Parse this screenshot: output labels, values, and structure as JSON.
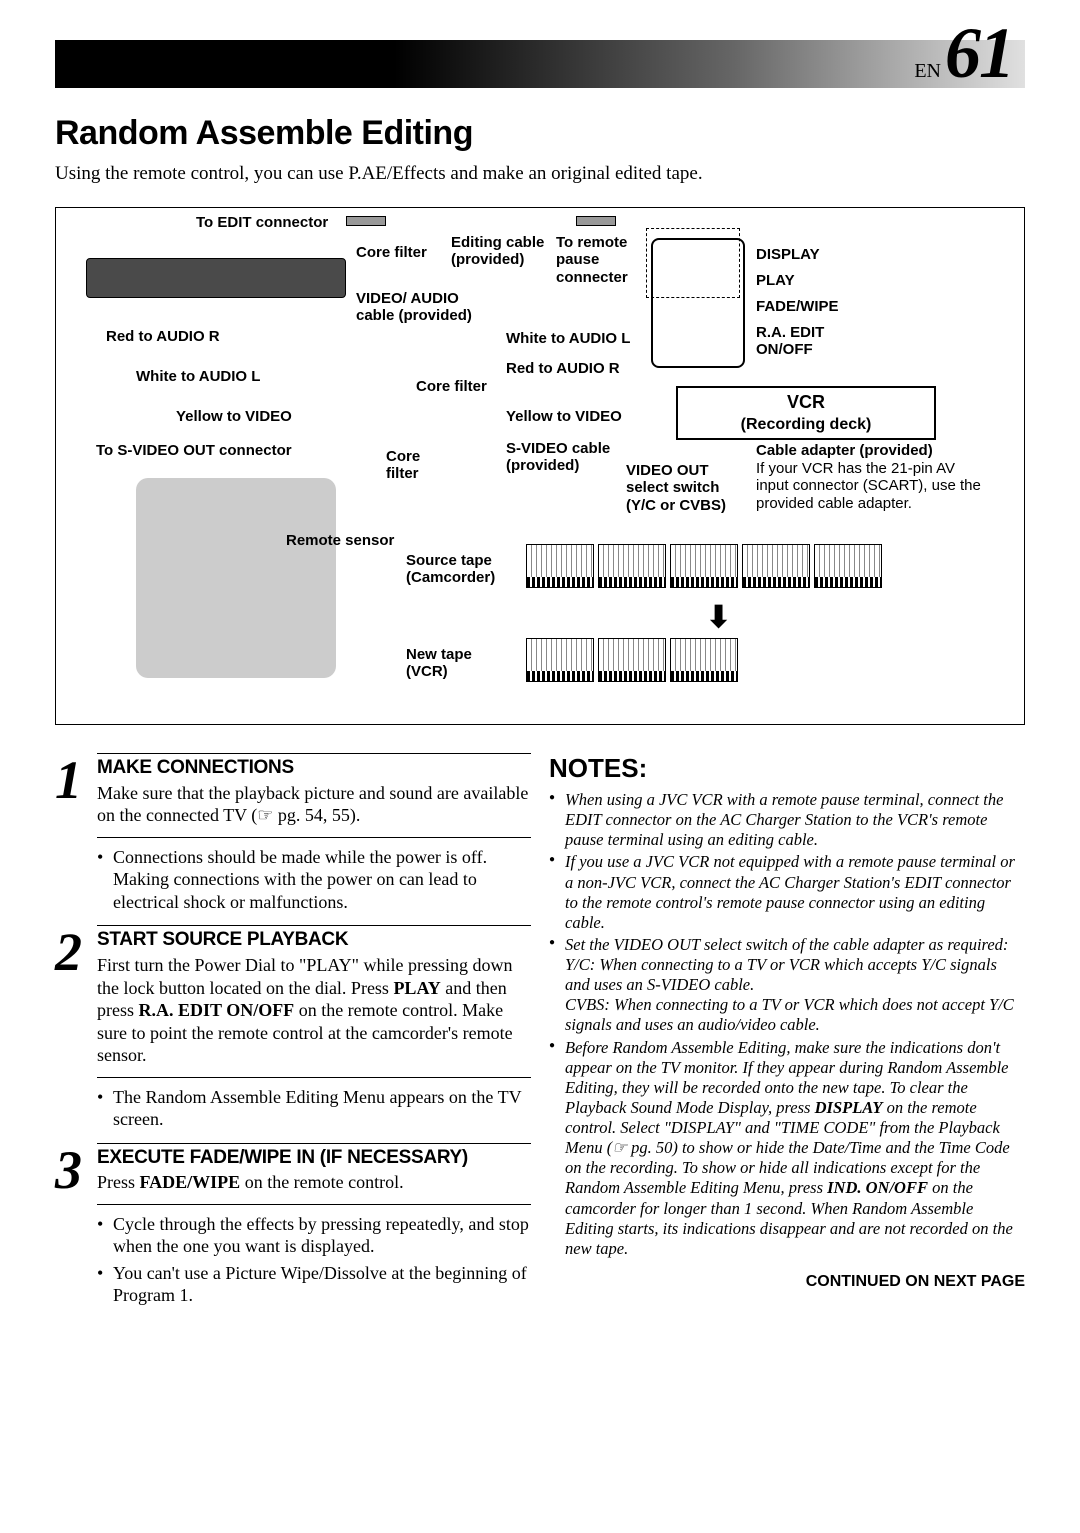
{
  "header": {
    "en_label": "EN",
    "page_number": "61"
  },
  "title": "Random Assemble Editing",
  "intro": "Using the remote control, you can use P.AE/Effects and make an original edited tape.",
  "diagram": {
    "to_edit_connector": "To EDIT connector",
    "editing_cable": "Editing cable (provided)",
    "to_remote_pause": "To remote pause connecter",
    "core_filter": "Core filter",
    "video_audio_cable": "VIDEO/ AUDIO cable (provided)",
    "red_audio_r": "Red to AUDIO R",
    "white_audio_l": "White to AUDIO L",
    "yellow_video": "Yellow to VIDEO",
    "to_svideo_out": "To S-VIDEO OUT connector",
    "svideo_cable": "S-VIDEO cable (provided)",
    "remote_sensor": "Remote sensor",
    "source_tape": "Source tape (Camcorder)",
    "new_tape": "New tape (VCR)",
    "display": "DISPLAY",
    "play": "PLAY",
    "fade_wipe": "FADE/WIPE",
    "ra_edit_onoff": "R.A. EDIT ON/OFF",
    "vcr_label": "VCR",
    "recording_deck": "(Recording deck)",
    "cable_adapter": "Cable adapter (provided)",
    "cable_adapter_text": "If your VCR has the 21-pin AV input connector (SCART), use the provided cable adapter.",
    "video_out_switch": "VIDEO OUT select switch (Y/C or CVBS)"
  },
  "steps": [
    {
      "num": "1",
      "title": "MAKE CONNECTIONS",
      "body": "Make sure that the playback picture and sound are available on the connected TV (☞ pg. 54, 55).",
      "bullets": [
        "Connections should be made while the power is off. Making connections with the power on can lead to electrical shock or malfunctions."
      ]
    },
    {
      "num": "2",
      "title": "START SOURCE PLAYBACK",
      "body_html": "First turn the Power Dial to \"PLAY\" while pressing down the lock button located on the dial. Press <b>PLAY</b> and then press <b>R.A. EDIT ON/OFF</b> on the remote control. Make sure to point the remote control at the camcorder's remote sensor.",
      "bullets": [
        "The Random Assemble Editing Menu appears on the TV screen."
      ]
    },
    {
      "num": "3",
      "title": "EXECUTE FADE/WIPE IN (IF NECESSARY)",
      "body_html": "Press <b>FADE/WIPE</b> on the remote control.",
      "bullets": [
        "Cycle through the effects by pressing repeatedly, and stop when the one you want is displayed.",
        "You can't use a Picture Wipe/Dissolve at the beginning of Program 1."
      ]
    }
  ],
  "notes": {
    "title": "NOTES:",
    "items": [
      "When using a JVC VCR with a remote pause terminal, connect the EDIT connector on the AC Charger Station to the VCR's remote pause terminal using an editing cable.",
      "If you use a JVC VCR not equipped with a remote pause terminal or a non-JVC VCR, connect the AC Charger Station's EDIT connector to the remote control's remote pause connector using an editing cable.",
      "Set the VIDEO OUT select switch of the cable adapter as required:\nY/C: When connecting to a TV or VCR which accepts Y/C signals and uses an S-VIDEO cable.\nCVBS: When connecting to a TV or VCR which does not accept Y/C signals and uses an audio/video cable.",
      "Before Random Assemble Editing, make sure the indications don't appear on the TV monitor. If they appear during Random Assemble Editing, they will be recorded onto the new tape. To clear the Playback Sound Mode Display, press <b>DISPLAY</b> on the remote control. Select \"DISPLAY\" and \"TIME CODE\" from the Playback Menu (☞ pg. 50) to show or hide the Date/Time and the Time Code on the recording. To show or hide all indications except for the Random Assemble Editing Menu, press <b>IND. ON/OFF</b> on the camcorder for longer than 1 second. When Random Assemble Editing starts, its indications disappear and are not recorded on the new tape."
    ]
  },
  "continued": "CONTINUED ON NEXT PAGE"
}
